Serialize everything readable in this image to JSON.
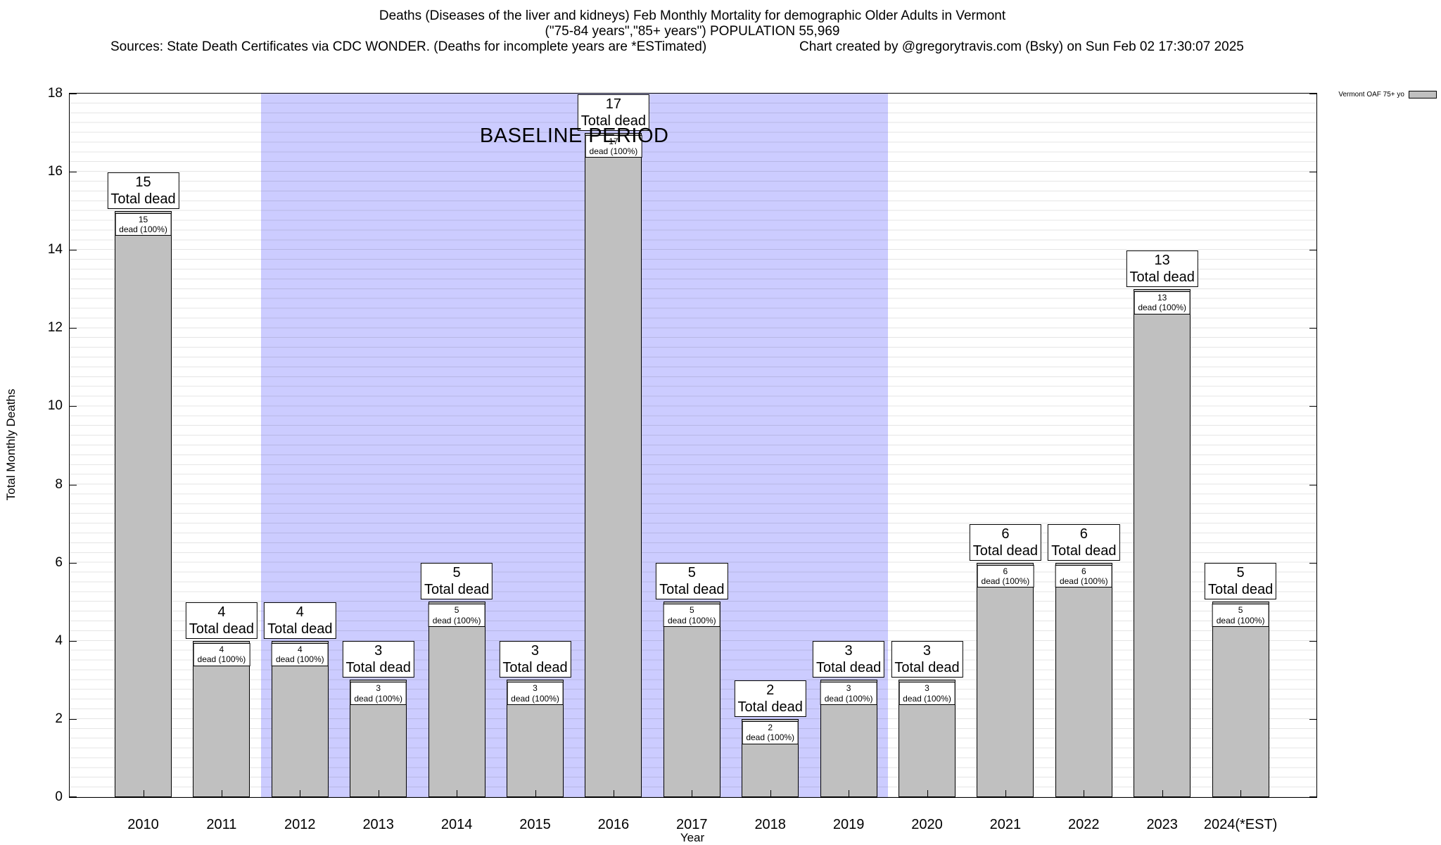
{
  "header": {
    "title_line1": "Deaths (Diseases of the liver and kidneys) Feb Monthly Mortality for demographic Older Adults in Vermont",
    "title_line2": "(\"75-84 years\",\"85+ years\") POPULATION 55,969",
    "sources": "Sources: State Death Certificates via CDC WONDER. (Deaths for incomplete years are *ESTimated)",
    "credit": "Chart created by @gregorytravis.com (Bsky) on Sun Feb 02 17:30:07 2025"
  },
  "legend": {
    "label": "Vermont OAF 75+ yo",
    "swatch_color": "#c0c0c0"
  },
  "chart_data": {
    "type": "bar",
    "title": "Deaths (Diseases of the liver and kidneys) Feb Monthly Mortality for demographic Older Adults in Vermont",
    "xlabel": "Year",
    "ylabel": "Total Monthly Deaths",
    "ylim": [
      0,
      18
    ],
    "y_ticks": [
      0,
      2,
      4,
      6,
      8,
      10,
      12,
      14,
      16,
      18
    ],
    "categories": [
      "2010",
      "2011",
      "2012",
      "2013",
      "2014",
      "2015",
      "2016",
      "2017",
      "2018",
      "2019",
      "2020",
      "2021",
      "2022",
      "2023",
      "2024(*EST)"
    ],
    "values": [
      15,
      4,
      4,
      3,
      5,
      3,
      17,
      5,
      2,
      3,
      3,
      6,
      6,
      13,
      5
    ],
    "series_name": "Vermont OAF 75+ yo",
    "bar_color": "#c0c0c0",
    "bar_label_suffix": "Total dead",
    "bar_sublabel_suffix": "dead (100%)",
    "baseline_band": {
      "label": "BASELINE PERIOD",
      "start_category": "2012",
      "end_category": "2019",
      "color": "#ccccff"
    },
    "grid": "horizontal-minor",
    "legend_position": "top-right-outside"
  }
}
